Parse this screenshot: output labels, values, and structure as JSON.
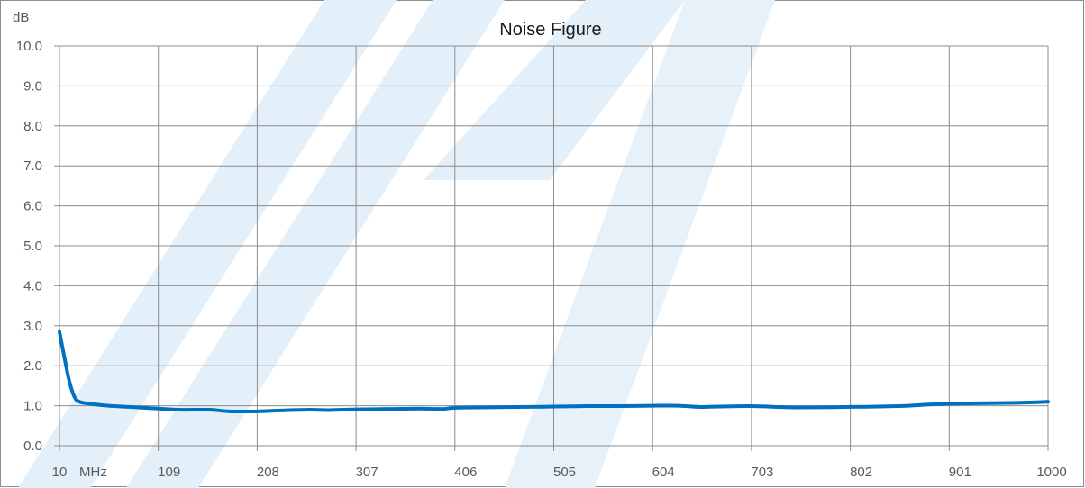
{
  "chart_data": {
    "type": "line",
    "title": "Noise Figure",
    "ylabel": "dB",
    "xlabel": "",
    "x_unit_label": "MHz",
    "xlim": [
      10,
      1000
    ],
    "ylim": [
      0,
      10
    ],
    "grid": true,
    "x_ticks": [
      10,
      109,
      208,
      307,
      406,
      505,
      604,
      703,
      802,
      901,
      1000
    ],
    "x_tick_labels": [
      "10",
      "109",
      "208",
      "307",
      "406",
      "505",
      "604",
      "703",
      "802",
      "901",
      "1000"
    ],
    "y_ticks": [
      0,
      1,
      2,
      3,
      4,
      5,
      6,
      7,
      8,
      9,
      10
    ],
    "y_tick_labels": [
      "0.0",
      "1.0",
      "2.0",
      "3.0",
      "4.0",
      "5.0",
      "6.0",
      "7.0",
      "8.0",
      "9.0",
      "10.0"
    ],
    "series": [
      {
        "color": "#0070c0",
        "x": [
          10,
          15,
          20,
          25,
          30,
          40,
          59,
          80,
          109,
          130,
          160,
          180,
          208,
          230,
          260,
          280,
          307,
          340,
          370,
          394,
          406,
          440,
          480,
          505,
          540,
          570,
          604,
          630,
          650,
          670,
          703,
          740,
          770,
          802,
          830,
          860,
          880,
          901,
          930,
          960,
          980,
          1000
        ],
        "y": [
          2.85,
          2.2,
          1.6,
          1.22,
          1.1,
          1.05,
          1.0,
          0.97,
          0.93,
          0.9,
          0.9,
          0.86,
          0.86,
          0.88,
          0.9,
          0.89,
          0.91,
          0.92,
          0.93,
          0.92,
          0.95,
          0.96,
          0.97,
          0.98,
          0.99,
          0.99,
          1.0,
          1.0,
          0.97,
          0.98,
          0.99,
          0.96,
          0.96,
          0.97,
          0.98,
          1.0,
          1.03,
          1.05,
          1.06,
          1.07,
          1.08,
          1.1
        ]
      }
    ]
  }
}
